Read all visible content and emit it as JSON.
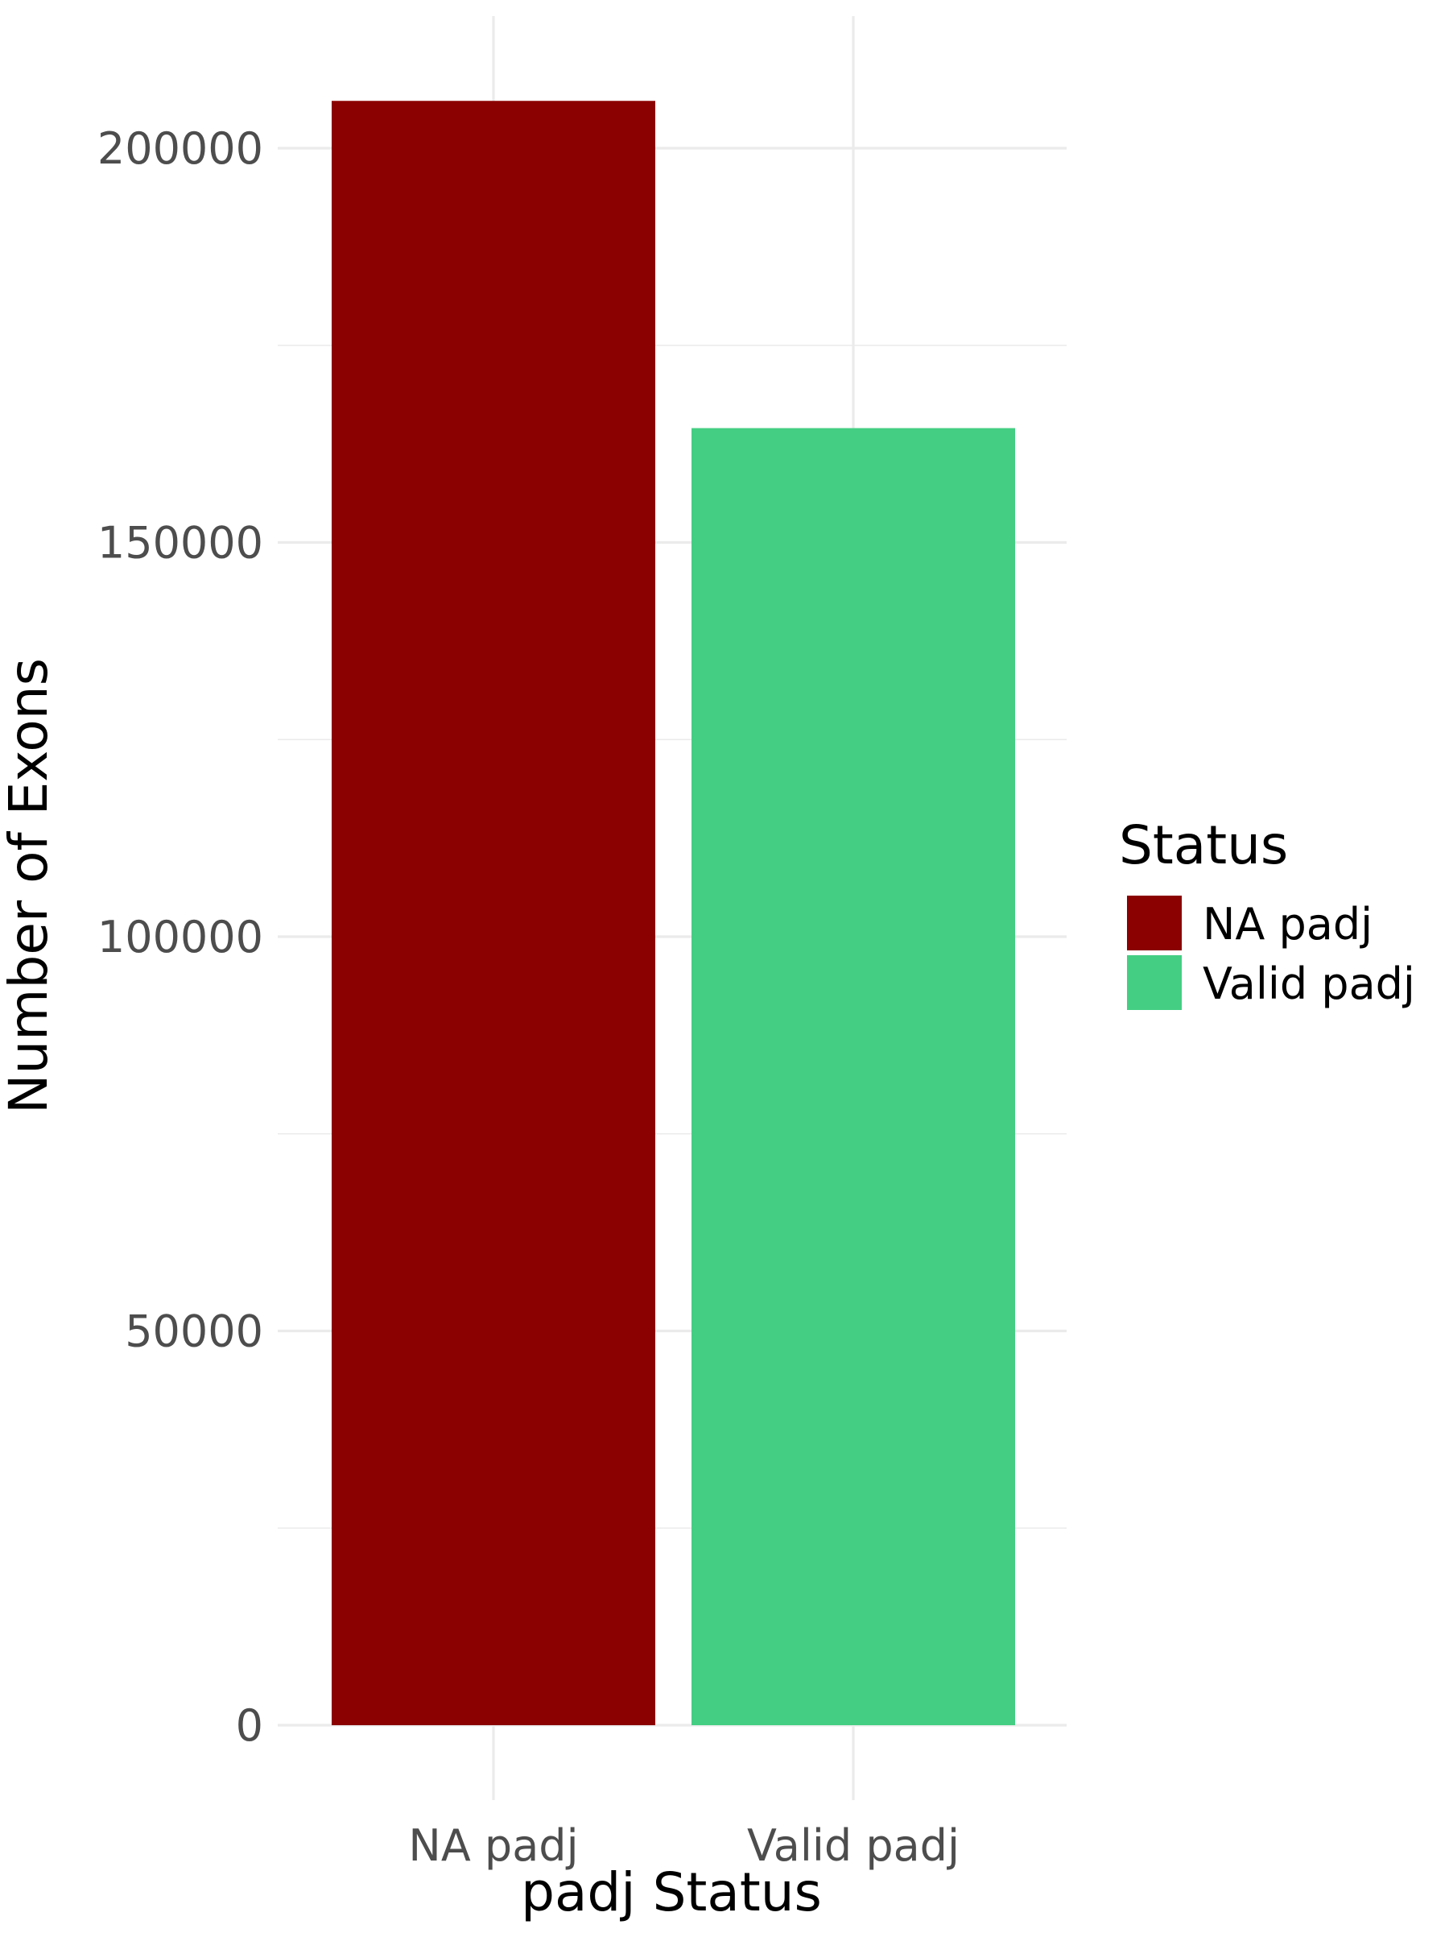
{
  "chart_data": {
    "type": "bar",
    "categories": [
      "NA padj",
      "Valid padj"
    ],
    "values": [
      206000,
      164500
    ],
    "colors": [
      "#8b0000",
      "#44ce83"
    ],
    "xlabel": "padj Status",
    "ylabel": "Number of Exons",
    "ylim": [
      0,
      216000
    ],
    "yticks": [
      0,
      50000,
      100000,
      150000,
      200000
    ],
    "ytick_labels": [
      "0",
      "50000",
      "100000",
      "150000",
      "200000"
    ],
    "grid": true,
    "legend": {
      "title": "Status",
      "position": "right",
      "entries": [
        {
          "label": "NA padj",
          "color": "#8b0000"
        },
        {
          "label": "Valid padj",
          "color": "#44ce83"
        }
      ]
    }
  }
}
